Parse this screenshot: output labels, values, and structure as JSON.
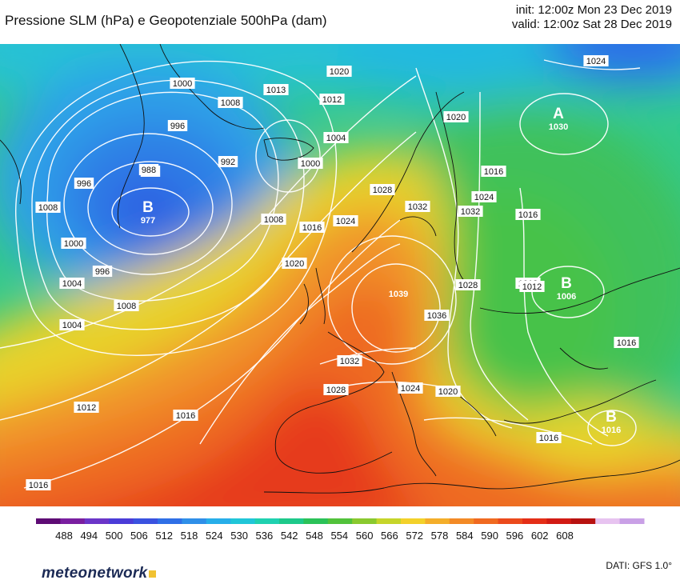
{
  "header": {
    "title": "Pressione SLM (hPa) e Geopotenziale 500hPa (dam)",
    "init": "init: 12:00z Mon 23 Dec 2019",
    "valid": "valid: 12:00z Sat 28 Dec 2019"
  },
  "map": {
    "pressure_centers": [
      {
        "letter": "B",
        "value": "977"
      },
      {
        "letter": "A",
        "value": "1030"
      },
      {
        "letter": "B",
        "value": "1006"
      },
      {
        "letter": "",
        "value": "1039"
      },
      {
        "letter": "B",
        "value": "1016"
      }
    ],
    "isobar_labels": [
      "1016",
      "1012",
      "1016",
      "1008",
      "1004",
      "1000",
      "996",
      "992",
      "988",
      "996",
      "1000",
      "1008",
      "1004",
      "1008",
      "1013",
      "1012",
      "1020",
      "1004",
      "1000",
      "996",
      "992",
      "1008",
      "1016",
      "1020",
      "1024",
      "1028",
      "1032",
      "1036",
      "1032",
      "1028",
      "1024",
      "1020",
      "1016",
      "1012",
      "1024",
      "1020",
      "1016",
      "1028",
      "1032",
      "1024",
      "1016",
      "1012",
      "1016"
    ]
  },
  "colorbar": {
    "ticks": [
      "488",
      "494",
      "500",
      "506",
      "512",
      "518",
      "524",
      "530",
      "536",
      "542",
      "548",
      "554",
      "560",
      "566",
      "572",
      "578",
      "584",
      "590",
      "596",
      "602",
      "608"
    ],
    "colors": [
      "#5e0b74",
      "#7a1fa0",
      "#6b35c8",
      "#4b3cd8",
      "#3a52e0",
      "#2f6fe6",
      "#2f8fe8",
      "#27aee9",
      "#20c6d8",
      "#1fd1b0",
      "#1dc98a",
      "#2bc258",
      "#52c23b",
      "#8ac92f",
      "#c6d52a",
      "#f3d12a",
      "#f4ae2a",
      "#f38a26",
      "#f06a20",
      "#eb4a1c",
      "#e42e17",
      "#d21b14",
      "#b81210",
      "#e7c3f0",
      "#c9a0e6"
    ]
  },
  "footer": {
    "brand": "meteonetwork",
    "source": "DATI: GFS 1.0°"
  }
}
